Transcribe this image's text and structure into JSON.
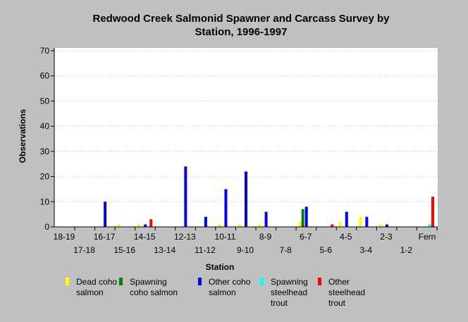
{
  "chart_data": {
    "type": "bar",
    "title_line1": "Redwood Creek Salmonid Spawner and Carcass Survey by",
    "title_line2": "Station, 1996-1997",
    "xlabel": "Station",
    "ylabel": "Observations",
    "ylim": [
      0,
      70
    ],
    "yticks": [
      0,
      10,
      20,
      30,
      40,
      50,
      60,
      70
    ],
    "grid": true,
    "legend_position": "bottom",
    "categories": [
      "18-19",
      "17-18",
      "16-17",
      "15-16",
      "14-15",
      "13-14",
      "12-13",
      "11-12",
      "10-11",
      "9-10",
      "8-9",
      "7-8",
      "6-7",
      "5-6",
      "4-5",
      "3-4",
      "2-3",
      "1-2",
      "Fern"
    ],
    "series": [
      {
        "name": "Dead coho salmon",
        "legend_lines": [
          "Dead coho",
          "salmon"
        ],
        "color": "#ffff00",
        "values": [
          0,
          0,
          0,
          1,
          1,
          0,
          0,
          0,
          1,
          1,
          1,
          0,
          2,
          0,
          2,
          4,
          1,
          0,
          0
        ]
      },
      {
        "name": "Spawning coho salmon",
        "legend_lines": [
          "Spawning",
          "coho salmon"
        ],
        "color": "#008000",
        "values": [
          0,
          0,
          0,
          0,
          0,
          0,
          0,
          0,
          0,
          0,
          0,
          0,
          7,
          0,
          0,
          0,
          0,
          0,
          0
        ]
      },
      {
        "name": "Other coho salmon",
        "legend_lines": [
          "Other coho",
          "salmon"
        ],
        "color": "#0000ff",
        "values": [
          0,
          0,
          10,
          0,
          1,
          0,
          24,
          4,
          15,
          22,
          6,
          0,
          8,
          0,
          6,
          4,
          1,
          0,
          0
        ]
      },
      {
        "name": "Spawning steelhead trout",
        "legend_lines": [
          "Spawning",
          "steelhead",
          "trout"
        ],
        "color": "#00ffff",
        "values": [
          0,
          0,
          0,
          0,
          0,
          0,
          0,
          0,
          0,
          0,
          0,
          0,
          0,
          0,
          0,
          0,
          0,
          0,
          1
        ]
      },
      {
        "name": "Other steelhead trout",
        "legend_lines": [
          "Other",
          "steelhead",
          "trout"
        ],
        "color": "#ff0000",
        "values": [
          0,
          0,
          0,
          0,
          3,
          0,
          0,
          0,
          0,
          0,
          0,
          0,
          0,
          1,
          0,
          0,
          0,
          0,
          12
        ]
      }
    ]
  }
}
